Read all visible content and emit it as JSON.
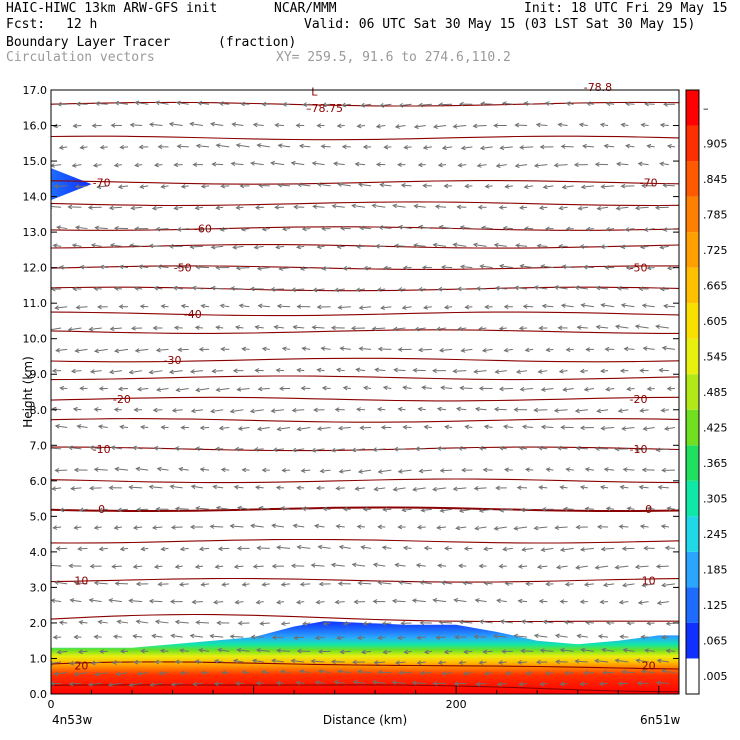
{
  "header": {
    "model": "HAIC-HIWC 13km ARW-GFS init",
    "org": "NCAR/MMM",
    "init": "Init: 18 UTC Fri 29 May 15",
    "fcst_label": "Fcst:",
    "fcst_value": "12 h",
    "valid": "Valid: 06 UTC Sat 30 May 15 (03 LST Sat 30 May 15)",
    "field_name": "Boundary Layer Tracer",
    "field_units": "(fraction)",
    "overlay": "Circulation vectors",
    "xy": "XY= 259.5, 91.6 to 274.6,110.2"
  },
  "chart_data": {
    "type": "heatmap",
    "xlabel": "Distance (km)",
    "ylabel": "Height (km)",
    "xlim": [
      0,
      310
    ],
    "ylim": [
      0.0,
      17.0
    ],
    "x_ticks": [
      0,
      200
    ],
    "x_tick_labels": [
      "0",
      "200"
    ],
    "x_endpoints": [
      "4n53w",
      "6n51w"
    ],
    "y_ticks": [
      "0.0",
      "1.0",
      "2.0",
      "3.0",
      "4.0",
      "5.0",
      "6.0",
      "7.0",
      "8.0",
      "9.0",
      "10.0",
      "11.0",
      "12.0",
      "13.0",
      "14.0",
      "15.0",
      "16.0",
      "17.0"
    ],
    "colorbar": {
      "labels": [
        ".005",
        ".065",
        ".125",
        ".185",
        ".245",
        ".305",
        ".365",
        ".425",
        ".485",
        ".545",
        ".605",
        ".665",
        ".725",
        ".785",
        ".845",
        ".905",
        "–"
      ],
      "colors": [
        "#ffffff",
        "#1030ff",
        "#1e6cff",
        "#2aa6ff",
        "#20d8e8",
        "#10e8a8",
        "#20e060",
        "#70e020",
        "#b0e818",
        "#e8f010",
        "#f8e000",
        "#ffc000",
        "#ffa000",
        "#ff8000",
        "#ff5a00",
        "#ff3000",
        "#ff0000"
      ]
    },
    "tracer_top_km": [
      [
        0,
        1.3
      ],
      [
        40,
        1.3
      ],
      [
        70,
        1.45
      ],
      [
        100,
        1.6
      ],
      [
        120,
        1.9
      ],
      [
        135,
        2.05
      ],
      [
        155,
        2.0
      ],
      [
        175,
        1.95
      ],
      [
        200,
        1.95
      ],
      [
        220,
        1.75
      ],
      [
        240,
        1.5
      ],
      [
        260,
        1.4
      ],
      [
        280,
        1.5
      ],
      [
        300,
        1.65
      ],
      [
        310,
        1.65
      ]
    ],
    "upper_blob": {
      "x_end": 20,
      "bottom_km": 13.9,
      "top_km": 14.8
    },
    "temperature_contours": [
      {
        "value": "–78.75",
        "height_km": 16.5,
        "label_x": [
          135
        ]
      },
      {
        "value": "-70",
        "height_km": 14.4,
        "label_x": [
          25,
          295
        ]
      },
      {
        "value": "-60",
        "height_km": 13.1,
        "label_x": [
          75
        ]
      },
      {
        "value": "-50",
        "height_km": 12.0,
        "label_x": [
          65,
          290
        ]
      },
      {
        "value": "-40",
        "height_km": 10.7,
        "label_x": [
          70
        ]
      },
      {
        "value": "-30",
        "height_km": 9.4,
        "label_x": [
          60
        ]
      },
      {
        "value": "-20",
        "height_km": 8.3,
        "label_x": [
          35,
          290
        ]
      },
      {
        "value": "-10",
        "height_km": 6.9,
        "label_x": [
          25,
          290
        ]
      },
      {
        "value": "0",
        "height_km": 5.2,
        "label_x": [
          25,
          295
        ]
      },
      {
        "value": "10",
        "height_km": 3.2,
        "label_x": [
          15,
          295
        ]
      },
      {
        "value": "20",
        "height_km": 0.8,
        "label_x": [
          15,
          295
        ]
      }
    ],
    "contour_levels_km": [
      16.6,
      15.65,
      14.4,
      13.8,
      13.1,
      12.6,
      12.0,
      11.4,
      10.7,
      10.2,
      9.4,
      8.9,
      8.3,
      7.7,
      6.9,
      6.0,
      5.2,
      4.3,
      3.2,
      2.1,
      0.8,
      0.2
    ],
    "top_label_partial": "-78.8",
    "low_marker": "L",
    "vectors": {
      "x_spacing_km": 10,
      "y_levels_km": [
        0.3,
        0.6,
        0.9,
        1.2,
        1.6,
        2.0,
        2.6,
        3.1,
        3.6,
        4.1,
        4.7,
        5.2,
        5.8,
        6.3,
        6.9,
        7.5,
        8.0,
        8.6,
        9.1,
        9.7,
        10.3,
        10.9,
        11.4,
        12.0,
        12.6,
        13.1,
        13.7,
        14.3,
        14.9,
        15.4,
        16.0,
        16.6
      ]
    }
  }
}
